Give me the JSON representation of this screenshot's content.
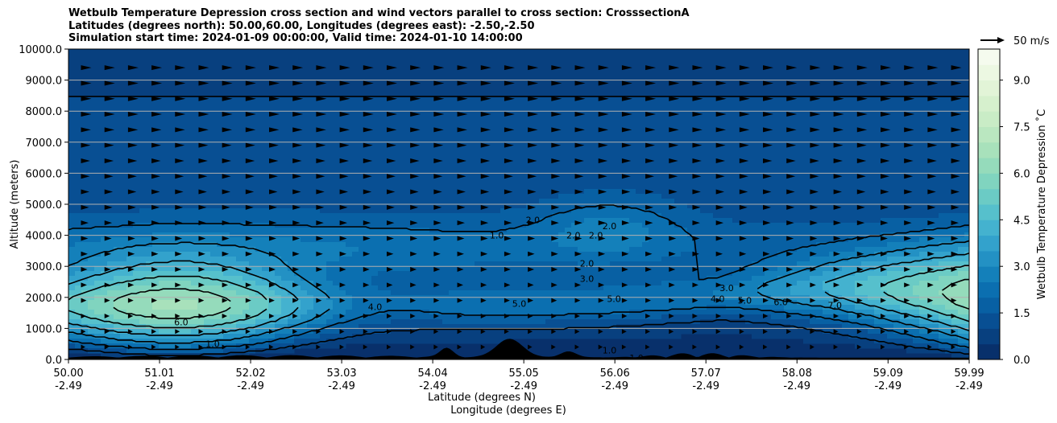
{
  "title": {
    "line1": "Wetbulb Temperature Depression cross section and wind vectors parallel to cross section: CrosssectionA",
    "line2": "Latitudes (degrees north): 50.00,60.00, Longitudes (degrees east): -2.50,-2.50",
    "line3": "Simulation start time: 2024-01-09 00:00:00, Valid time: 2024-01-10 14:00:00"
  },
  "chart_data": {
    "type": "heatmap",
    "subtype": "filled contour cross section with contour lines and wind vectors",
    "xlabel": "Latitude (degrees N)",
    "xlabel2": "Longitude (degrees E)",
    "ylabel": "Altitude (meters)",
    "xlim": [
      50.0,
      59.99
    ],
    "ylim": [
      0,
      10000
    ],
    "x_ticks": [
      {
        "lat": "50.00",
        "lon": "-2.49",
        "value": 50.0
      },
      {
        "lat": "51.01",
        "lon": "-2.49",
        "value": 51.01
      },
      {
        "lat": "52.02",
        "lon": "-2.49",
        "value": 52.02
      },
      {
        "lat": "53.03",
        "lon": "-2.49",
        "value": 53.03
      },
      {
        "lat": "54.04",
        "lon": "-2.49",
        "value": 54.04
      },
      {
        "lat": "55.05",
        "lon": "-2.49",
        "value": 55.05
      },
      {
        "lat": "56.06",
        "lon": "-2.49",
        "value": 56.06
      },
      {
        "lat": "57.07",
        "lon": "-2.49",
        "value": 57.07
      },
      {
        "lat": "58.08",
        "lon": "-2.49",
        "value": 58.08
      },
      {
        "lat": "59.09",
        "lon": "-2.49",
        "value": 59.09
      },
      {
        "lat": "59.99",
        "lon": "-2.49",
        "value": 59.99
      }
    ],
    "y_ticks": [
      {
        "label": "0.0",
        "value": 0
      },
      {
        "label": "1000.0",
        "value": 1000
      },
      {
        "label": "2000.0",
        "value": 2000
      },
      {
        "label": "3000.0",
        "value": 3000
      },
      {
        "label": "4000.0",
        "value": 4000
      },
      {
        "label": "5000.0",
        "value": 5000
      },
      {
        "label": "6000.0",
        "value": 6000
      },
      {
        "label": "7000.0",
        "value": 7000
      },
      {
        "label": "8000.0",
        "value": 8000
      },
      {
        "label": "9000.0",
        "value": 9000
      },
      {
        "label": "10000.0",
        "value": 10000
      }
    ],
    "horizontal_gridlines": true,
    "colorbar": {
      "label": "Wetbulb Temperature Depression ˚C",
      "range": [
        0,
        10
      ],
      "ticks": [
        {
          "label": "0.0",
          "value": 0
        },
        {
          "label": "1.5",
          "value": 1.5
        },
        {
          "label": "3.0",
          "value": 3.0
        },
        {
          "label": "4.5",
          "value": 4.5
        },
        {
          "label": "6.0",
          "value": 6.0
        },
        {
          "label": "7.5",
          "value": 7.5
        },
        {
          "label": "9.0",
          "value": 9.0
        }
      ],
      "colors": [
        "#08306b",
        "#08407f",
        "#084f93",
        "#0860a3",
        "#0b6fb0",
        "#1480ba",
        "#2391c4",
        "#33a2cc",
        "#44b2cf",
        "#56c0cc",
        "#6bcbc5",
        "#80d4bf",
        "#95dbbb",
        "#a8e1bb",
        "#bae7c0",
        "#c9ecc6",
        "#d6f0cd",
        "#e2f4d7",
        "#ecf8e2",
        "#f5fbee"
      ]
    },
    "wind_key": {
      "label": "50 m/s",
      "value": 50
    },
    "contour_levels": [
      1.0,
      2.0,
      3.0,
      4.0,
      5.0,
      6.0,
      7.0
    ],
    "contour_labels": [
      {
        "text": "2.0",
        "lat": 55.75,
        "alt": 3100
      },
      {
        "text": "3.0",
        "lat": 55.75,
        "alt": 2600
      },
      {
        "text": "5.0",
        "lat": 55.0,
        "alt": 1800
      },
      {
        "text": "5.0",
        "lat": 56.05,
        "alt": 1950
      },
      {
        "text": "4.0",
        "lat": 53.4,
        "alt": 1700
      },
      {
        "text": "4.0",
        "lat": 57.2,
        "alt": 1950
      },
      {
        "text": "3.0",
        "lat": 57.3,
        "alt": 2300
      },
      {
        "text": "5.0",
        "lat": 57.5,
        "alt": 1900
      },
      {
        "text": "6.0",
        "lat": 57.9,
        "alt": 1850
      },
      {
        "text": "7.0",
        "lat": 58.5,
        "alt": 1750
      },
      {
        "text": "6.0",
        "lat": 51.25,
        "alt": 1200
      },
      {
        "text": "1.0",
        "lat": 51.6,
        "alt": 500
      },
      {
        "text": "1.0",
        "lat": 56.0,
        "alt": 300
      },
      {
        "text": "1.0",
        "lat": 56.3,
        "alt": 50
      },
      {
        "text": "2.0",
        "lat": 55.15,
        "alt": 4500
      },
      {
        "text": "2.0",
        "lat": 55.6,
        "alt": 4000
      },
      {
        "text": "2.0",
        "lat": 55.85,
        "alt": 4000
      },
      {
        "text": "2.0",
        "lat": 56.0,
        "alt": 4300
      },
      {
        "text": "1.0",
        "lat": 54.75,
        "alt": 4000
      }
    ],
    "terrain_alt_max": 600
  }
}
